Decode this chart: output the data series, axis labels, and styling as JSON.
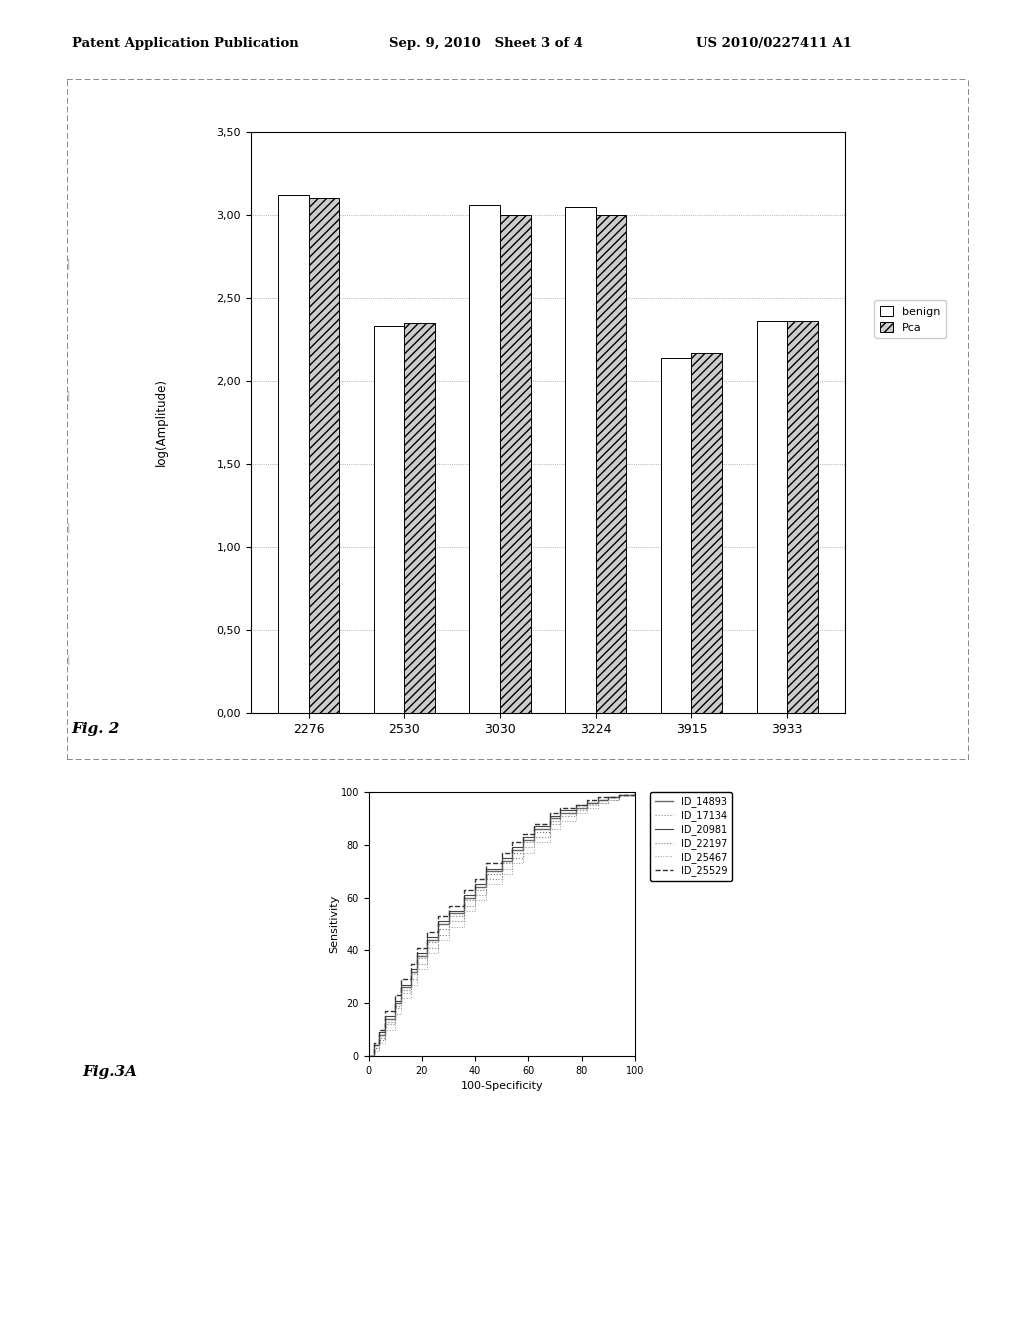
{
  "header_left": "Patent Application Publication",
  "header_mid": "Sep. 9, 2010   Sheet 3 of 4",
  "header_right": "US 2010/0227411 A1",
  "fig2": {
    "categories": [
      "2276",
      "2530",
      "3030",
      "3224",
      "3915",
      "3933"
    ],
    "benign": [
      3.12,
      2.33,
      3.06,
      3.05,
      2.14,
      2.36
    ],
    "pca": [
      3.1,
      2.35,
      3.0,
      3.0,
      2.17,
      2.36
    ],
    "ylabel": "log(Amplitude)",
    "ylim": [
      0.0,
      3.5
    ],
    "yticks": [
      0.0,
      0.5,
      1.0,
      1.5,
      2.0,
      2.5,
      3.0,
      3.5
    ],
    "ytick_labels": [
      "0,00",
      "0,50",
      "1,00",
      "1,50",
      "2,00",
      "2,50",
      "3,00",
      "3,50"
    ],
    "legend_benign": "benign",
    "legend_pca": "Pca",
    "fig_label": "Fig. 2"
  },
  "fig3a": {
    "xlabel": "100-Specificity",
    "ylabel": "Sensitivity",
    "xlim": [
      0,
      100
    ],
    "ylim": [
      0,
      100
    ],
    "xticks": [
      0,
      20,
      40,
      60,
      80,
      100
    ],
    "yticks": [
      0,
      20,
      40,
      60,
      80,
      100
    ],
    "legend_ids": [
      "ID_14893",
      "ID_17134",
      "ID_20981",
      "ID_22197",
      "ID_25467",
      "ID_25529"
    ],
    "line_styles": [
      "-",
      ":",
      "-",
      ":",
      ":",
      "--"
    ],
    "fig_label": "Fig.3A",
    "curves": [
      {
        "x": [
          0,
          2,
          4,
          6,
          10,
          12,
          16,
          18,
          22,
          26,
          30,
          36,
          40,
          44,
          50,
          54,
          58,
          62,
          68,
          72,
          78,
          82,
          86,
          90,
          94,
          100
        ],
        "y": [
          0,
          4,
          8,
          14,
          20,
          26,
          32,
          38,
          44,
          50,
          54,
          60,
          64,
          70,
          74,
          78,
          82,
          86,
          90,
          92,
          94,
          96,
          97,
          98,
          99,
          100
        ]
      },
      {
        "x": [
          0,
          2,
          4,
          6,
          10,
          12,
          16,
          18,
          22,
          26,
          30,
          36,
          40,
          44,
          50,
          54,
          58,
          62,
          68,
          72,
          78,
          82,
          86,
          90,
          94,
          100
        ],
        "y": [
          0,
          3,
          6,
          12,
          18,
          24,
          29,
          35,
          41,
          46,
          51,
          57,
          61,
          67,
          71,
          75,
          79,
          83,
          88,
          91,
          93,
          95,
          96,
          97,
          99,
          100
        ]
      },
      {
        "x": [
          0,
          2,
          4,
          6,
          10,
          12,
          16,
          18,
          22,
          26,
          30,
          36,
          40,
          44,
          50,
          54,
          58,
          62,
          68,
          72,
          78,
          82,
          86,
          90,
          94,
          100
        ],
        "y": [
          0,
          4,
          9,
          15,
          21,
          27,
          33,
          39,
          45,
          51,
          55,
          61,
          65,
          71,
          75,
          79,
          83,
          87,
          91,
          93,
          95,
          96,
          97,
          98,
          99,
          100
        ]
      },
      {
        "x": [
          0,
          2,
          4,
          6,
          10,
          12,
          16,
          18,
          22,
          26,
          30,
          36,
          40,
          44,
          50,
          54,
          58,
          62,
          68,
          72,
          78,
          82,
          86,
          90,
          94,
          100
        ],
        "y": [
          0,
          3,
          7,
          13,
          19,
          25,
          31,
          37,
          43,
          48,
          53,
          59,
          63,
          69,
          73,
          77,
          81,
          85,
          89,
          92,
          94,
          96,
          97,
          98,
          99,
          100
        ]
      },
      {
        "x": [
          0,
          2,
          4,
          6,
          10,
          12,
          16,
          18,
          22,
          26,
          30,
          36,
          40,
          44,
          50,
          54,
          58,
          62,
          68,
          72,
          78,
          82,
          86,
          90,
          94,
          100
        ],
        "y": [
          0,
          2,
          5,
          10,
          16,
          22,
          27,
          33,
          39,
          44,
          49,
          55,
          59,
          65,
          69,
          73,
          77,
          81,
          86,
          89,
          92,
          94,
          96,
          97,
          99,
          100
        ]
      },
      {
        "x": [
          0,
          2,
          4,
          6,
          10,
          12,
          16,
          18,
          22,
          26,
          30,
          36,
          40,
          44,
          50,
          54,
          58,
          62,
          68,
          72,
          78,
          82,
          86,
          90,
          94,
          100
        ],
        "y": [
          0,
          5,
          10,
          17,
          23,
          29,
          35,
          41,
          47,
          53,
          57,
          63,
          67,
          73,
          77,
          81,
          84,
          88,
          92,
          94,
          95,
          97,
          98,
          98,
          99,
          100
        ]
      }
    ]
  }
}
